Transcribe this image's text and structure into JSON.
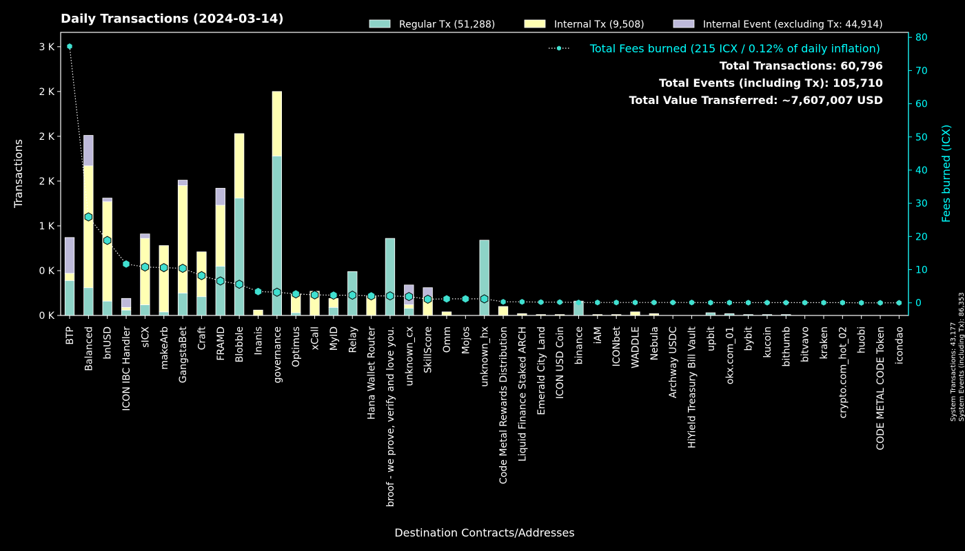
{
  "chart_data": {
    "type": "bar",
    "stacked": true,
    "title": "Daily Transactions (2024-03-14)",
    "xlabel": "Destination Contracts/Addresses",
    "ylabel": "Transactions",
    "y2label": "Fees burned (ICX)",
    "ylim": [
      0,
      3160
    ],
    "y2lim": [
      -3.8,
      81.5
    ],
    "yticks": [
      0,
      500,
      1000,
      1500,
      2000,
      2500,
      3000
    ],
    "ytick_labels": [
      "0 K",
      "0 K",
      "1 K",
      "2 K",
      "2 K",
      "2 K",
      "3 K"
    ],
    "y2ticks": [
      0,
      10,
      20,
      30,
      40,
      50,
      60,
      70,
      80
    ],
    "categories": [
      "BTP",
      "Balanced",
      "bnUSD",
      "ICON IBC Handler",
      "sICX",
      "makeArb",
      "GangstaBet",
      "Craft",
      "FRAMD",
      "Blobble",
      "Inanis",
      "governance",
      "Optimus",
      "xCall",
      "MyID",
      "Relay",
      "Hana Wallet Router",
      "broof - we prove, verify and love you.",
      "unknown_cx",
      "SkillScore",
      "Omm",
      "Mojos",
      "unknown_hx",
      "Code Metal Rewards Distribution",
      "Liquid Finance Staked ARCH",
      "Emerald City Land",
      "ICON USD Coin",
      "binance",
      "iAM",
      "ICONbet",
      "WADDLE",
      "Nebula",
      "Archway USDC",
      "HiYield Treasury Bill Vault",
      "upbit",
      "okx.com_01",
      "bybit",
      "kucoin",
      "bithumb",
      "bitvavo",
      "kraken",
      "crypto.com_hot_02",
      "huobi",
      "CODE METAL CODE Token",
      "icondao"
    ],
    "series": [
      {
        "name": "Regular Tx (51,288)",
        "color": "#8dd3c7",
        "values": [
          390,
          310,
          160,
          60,
          120,
          40,
          250,
          210,
          550,
          1310,
          0,
          1780,
          30,
          0,
          90,
          490,
          0,
          860,
          80,
          0,
          0,
          0,
          840,
          0,
          0,
          0,
          0,
          160,
          0,
          0,
          0,
          0,
          0,
          0,
          30,
          20,
          10,
          10,
          10,
          0,
          0,
          0,
          0,
          0,
          0
        ]
      },
      {
        "name": "Internal Tx (9,508)",
        "color": "#ffffb3",
        "values": [
          80,
          1360,
          1110,
          30,
          740,
          740,
          1200,
          500,
          680,
          720,
          60,
          720,
          210,
          270,
          100,
          0,
          220,
          0,
          40,
          210,
          40,
          0,
          0,
          100,
          20,
          10,
          10,
          0,
          10,
          10,
          40,
          20,
          0,
          0,
          0,
          0,
          0,
          0,
          0,
          0,
          0,
          0,
          0,
          0,
          0
        ]
      },
      {
        "name": "Internal Event (excluding Tx: 44,914)",
        "color": "#bebada",
        "values": [
          400,
          340,
          40,
          100,
          50,
          0,
          60,
          0,
          190,
          0,
          0,
          0,
          0,
          0,
          0,
          0,
          0,
          0,
          220,
          100,
          0,
          0,
          0,
          0,
          0,
          0,
          0,
          0,
          0,
          0,
          0,
          0,
          0,
          0,
          0,
          0,
          0,
          0,
          0,
          0,
          0,
          0,
          0,
          0,
          0
        ]
      }
    ],
    "fees": {
      "name": "Total Fees burned (215 ICX / 0.12% of daily inflation)",
      "color": "#00ffff",
      "values": [
        77.3,
        25.9,
        18.8,
        11.7,
        10.8,
        10.6,
        10.4,
        8.2,
        6.6,
        5.6,
        3.4,
        3.2,
        2.7,
        2.4,
        2.3,
        2.3,
        2.1,
        2.1,
        1.9,
        1.1,
        1.2,
        1.2,
        1.2,
        0.3,
        0.3,
        0.2,
        0.2,
        0.1,
        0.1,
        0.1,
        0.1,
        0.1,
        0.1,
        0.1,
        0.05,
        0.05,
        0.05,
        0.05,
        0.05,
        0.05,
        0.05,
        0.05,
        0.0,
        0.0,
        0.0
      ]
    },
    "legend_position": "top-right",
    "summary": [
      "Total Transactions: 60,796",
      "Total Events (including Tx): 105,710",
      "Total Value Transferred: ~7,607,007 USD"
    ],
    "side_notes": [
      "System Transactions: 43,177",
      "System Events (including Tx): 86,353"
    ]
  }
}
